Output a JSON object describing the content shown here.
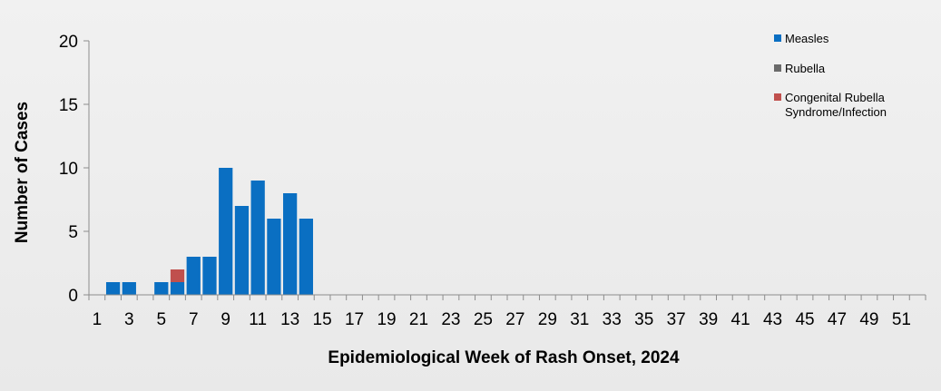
{
  "chart_data": {
    "type": "bar",
    "stacked": true,
    "xlabel": "Epidemiological Week of Rash Onset, 2024",
    "ylabel": "Number of Cases",
    "ylim": [
      0,
      20
    ],
    "yticks": [
      0,
      5,
      10,
      15,
      20
    ],
    "x": [
      1,
      2,
      3,
      4,
      5,
      6,
      7,
      8,
      9,
      10,
      11,
      12,
      13,
      14,
      15,
      16,
      17,
      18,
      19,
      20,
      21,
      22,
      23,
      24,
      25,
      26,
      27,
      28,
      29,
      30,
      31,
      32,
      33,
      34,
      35,
      36,
      37,
      38,
      39,
      40,
      41,
      42,
      43,
      44,
      45,
      46,
      47,
      48,
      49,
      50,
      51,
      52
    ],
    "xtick_labels": [
      "1",
      "3",
      "5",
      "7",
      "9",
      "11",
      "13",
      "15",
      "17",
      "19",
      "21",
      "23",
      "25",
      "27",
      "29",
      "31",
      "33",
      "35",
      "37",
      "39",
      "41",
      "43",
      "45",
      "47",
      "49",
      "51"
    ],
    "legend_position": "top-right",
    "grid": false,
    "series": [
      {
        "name": "Measles",
        "color": "#0a6fc2",
        "values": [
          0,
          1,
          1,
          0,
          1,
          1,
          3,
          3,
          10,
          7,
          9,
          6,
          8,
          6,
          0,
          0,
          0,
          0,
          0,
          0,
          0,
          0,
          0,
          0,
          0,
          0,
          0,
          0,
          0,
          0,
          0,
          0,
          0,
          0,
          0,
          0,
          0,
          0,
          0,
          0,
          0,
          0,
          0,
          0,
          0,
          0,
          0,
          0,
          0,
          0,
          0,
          0
        ]
      },
      {
        "name": "Rubella",
        "color": "#6a6a6a",
        "values": [
          0,
          0,
          0,
          0,
          0,
          0,
          0,
          0,
          0,
          0,
          0,
          0,
          0,
          0,
          0,
          0,
          0,
          0,
          0,
          0,
          0,
          0,
          0,
          0,
          0,
          0,
          0,
          0,
          0,
          0,
          0,
          0,
          0,
          0,
          0,
          0,
          0,
          0,
          0,
          0,
          0,
          0,
          0,
          0,
          0,
          0,
          0,
          0,
          0,
          0,
          0,
          0
        ]
      },
      {
        "name": "Congenital Rubella Syndrome/Infection",
        "name_lines": [
          "Congenital Rubella",
          "Syndrome/Infection"
        ],
        "color": "#c0504d",
        "values": [
          0,
          0,
          0,
          0,
          0,
          1,
          0,
          0,
          0,
          0,
          0,
          0,
          0,
          0,
          0,
          0,
          0,
          0,
          0,
          0,
          0,
          0,
          0,
          0,
          0,
          0,
          0,
          0,
          0,
          0,
          0,
          0,
          0,
          0,
          0,
          0,
          0,
          0,
          0,
          0,
          0,
          0,
          0,
          0,
          0,
          0,
          0,
          0,
          0,
          0,
          0,
          0
        ]
      }
    ]
  }
}
